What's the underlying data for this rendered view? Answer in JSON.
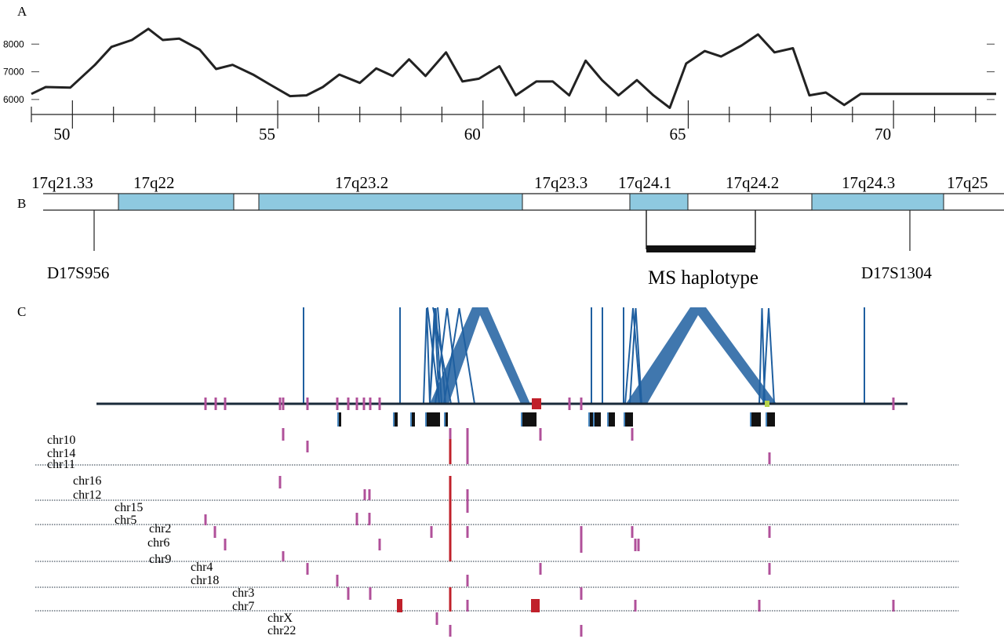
{
  "figure": {
    "panel_labels": [
      "A",
      "B",
      "C"
    ]
  },
  "chart_data": [
    {
      "type": "line",
      "panel": "A",
      "xlabel": "",
      "ylabel": "",
      "xlim": [
        49,
        72.5
      ],
      "ylim": [
        5600,
        8800
      ],
      "xticks_labels": [
        "50",
        "55",
        "60",
        "65",
        "70"
      ],
      "xticks_values": [
        50,
        55,
        60,
        65,
        70
      ],
      "yticks_labels": [
        "6000",
        "7000",
        "8000"
      ],
      "yticks_values": [
        6000,
        7000,
        8000
      ],
      "series": [
        {
          "color": "#222222",
          "x": [
            49.0,
            49.35,
            49.95,
            50.55,
            50.95,
            51.45,
            51.85,
            52.2,
            52.6,
            53.1,
            53.5,
            53.9,
            54.4,
            54.8,
            55.3,
            55.7,
            56.1,
            56.5,
            57.0,
            57.4,
            57.8,
            58.2,
            58.6,
            59.1,
            59.5,
            59.9,
            60.4,
            60.8,
            61.3,
            61.7,
            62.1,
            62.5,
            62.9,
            63.3,
            63.75,
            64.15,
            64.55,
            64.95,
            65.4,
            65.8,
            66.3,
            66.7,
            67.1,
            67.55,
            67.95,
            68.35,
            68.8,
            69.2,
            69.6,
            70.05,
            70.45,
            70.9,
            71.35,
            71.7,
            72.1,
            72.5
          ],
          "y": [
            6200,
            6450,
            6430,
            7250,
            7900,
            8150,
            8550,
            8150,
            8200,
            7800,
            7100,
            7250,
            6900,
            6550,
            6120,
            6150,
            6450,
            6900,
            6600,
            7120,
            6850,
            7450,
            6850,
            7700,
            6650,
            6750,
            7200,
            6150,
            6650,
            6650,
            6150,
            7400,
            6700,
            6150,
            6700,
            6150,
            5700,
            7300,
            7750,
            7550,
            7950,
            8350,
            7700,
            7850,
            6150,
            6250,
            5800,
            6200,
            6200,
            6200,
            6200,
            6200,
            6200,
            6200,
            6200,
            6200
          ]
        }
      ]
    }
  ],
  "panel_b": {
    "bands": [
      {
        "label": "17q21.33",
        "colored": false
      },
      {
        "label": "17q22",
        "colored": true
      },
      {
        "label": "",
        "colored": false
      },
      {
        "label": "17q23.2",
        "colored": true
      },
      {
        "label": "17q23.3",
        "colored": false
      },
      {
        "label": "17q24.1",
        "colored": true
      },
      {
        "label": "17q24.2",
        "colored": false
      },
      {
        "label": "17q24.3",
        "colored": true
      },
      {
        "label": "17q25",
        "colored": false
      }
    ],
    "band_color": "#8ec9e0",
    "markers": [
      "D17S956",
      "D17S1304"
    ],
    "haplotype_label": "MS haplotype"
  },
  "panel_c": {
    "line_color": "#1f5fa0",
    "tick_color": "#b0509a",
    "highlight_color": "#c0202a",
    "chromosome_rows": [
      {
        "label": "chr10"
      },
      {
        "label": "chr14"
      },
      {
        "label": "chr11"
      },
      {
        "label": "chr16"
      },
      {
        "label": "chr12"
      },
      {
        "label": "chr15"
      },
      {
        "label": "chr5"
      },
      {
        "label": "chr2"
      },
      {
        "label": "chr6"
      },
      {
        "label": "chr9"
      },
      {
        "label": "chr4"
      },
      {
        "label": "chr18"
      },
      {
        "label": "chr3"
      },
      {
        "label": "chr7"
      },
      {
        "label": "chrX"
      },
      {
        "label": "chr22"
      }
    ]
  }
}
